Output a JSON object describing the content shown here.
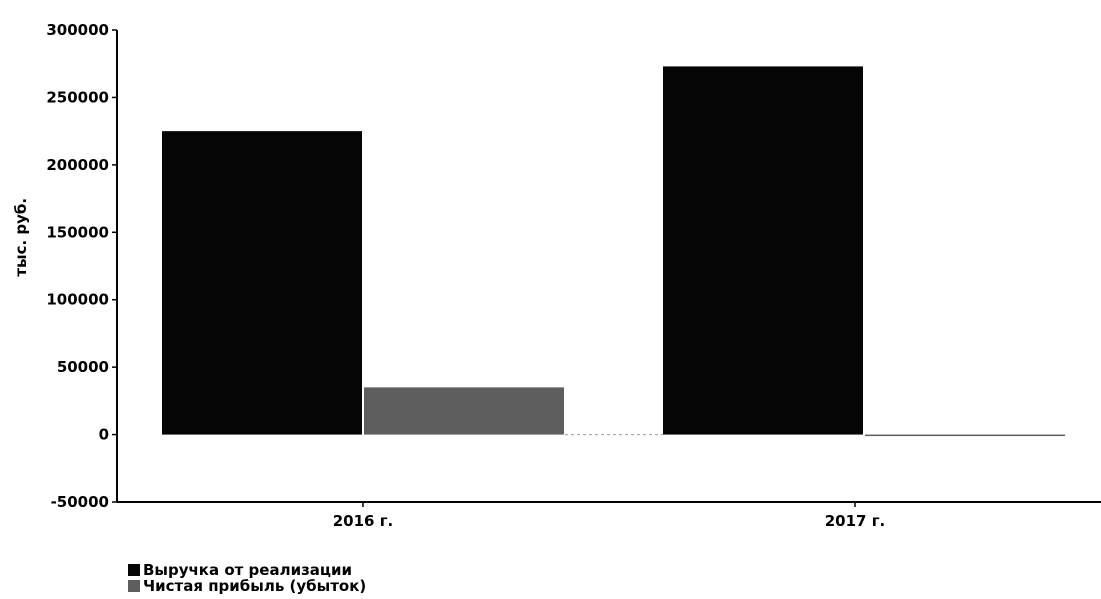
{
  "chart_data": {
    "type": "bar",
    "title": "",
    "categories": [
      "2016 г.",
      "2017 г."
    ],
    "series": [
      {
        "name": "Выручка от реализации",
        "values": [
          225000,
          273000
        ],
        "color": "#050505"
      },
      {
        "name": "Чистая прибыль (убыток)",
        "values": [
          35000,
          -500
        ],
        "color": "#5e5e5e"
      }
    ],
    "xlabel": "",
    "ylabel": "тыс. руб.",
    "ylim": [
      -50000,
      300000
    ],
    "yticks": [
      300000,
      250000,
      200000,
      150000,
      100000,
      50000,
      0,
      -50000
    ],
    "grid": false,
    "legend_position": "bottom-left"
  }
}
